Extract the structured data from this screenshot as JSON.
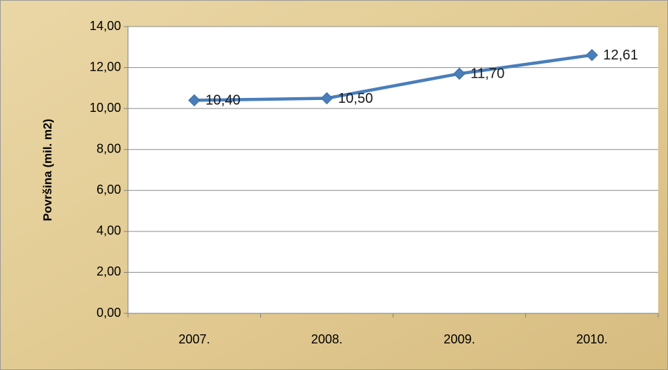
{
  "chart_data": {
    "type": "line",
    "title": "",
    "xlabel": "",
    "ylabel": "Površina (mil. m2)",
    "categories": [
      "2007.",
      "2008.",
      "2009.",
      "2010."
    ],
    "series": [
      {
        "values": [
          10.4,
          10.5,
          11.7,
          12.61
        ]
      }
    ],
    "data_labels": [
      "10,40",
      "10,50",
      "11,70",
      "12,61"
    ],
    "yticks": [
      "0,00",
      "2,00",
      "4,00",
      "6,00",
      "8,00",
      "10,00",
      "12,00",
      "14,00"
    ],
    "ylim": [
      0,
      14
    ],
    "grid": true,
    "legend": "none",
    "colors": {
      "series": "#4a7ebb",
      "grid": "#8c8c8c",
      "plot_bg": "#ffffff",
      "background": "#e2cc96"
    }
  }
}
